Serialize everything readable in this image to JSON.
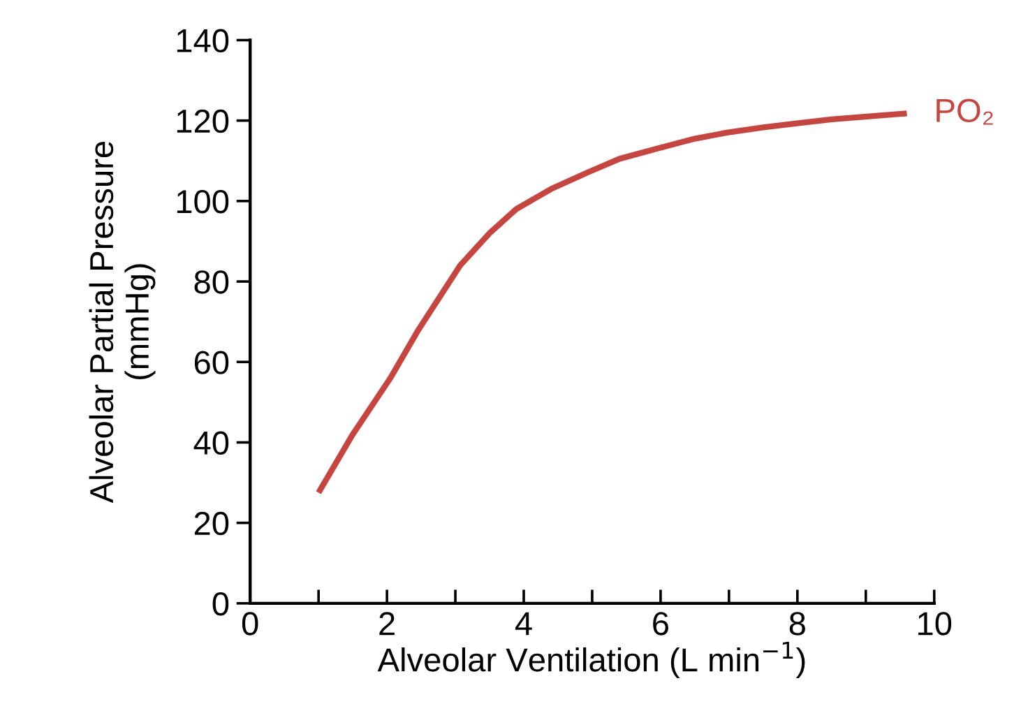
{
  "chart_data": {
    "type": "line",
    "xlabel": "Alveolar Ventilation (L min$^{−1}$)",
    "ylabel": "Alveolar Partial Pressure\n(mmHg)",
    "series": [
      {
        "name": "PO₂",
        "color": "#c8453f",
        "x": [
          1.0,
          1.5,
          2.05,
          2.46,
          3.07,
          3.5,
          3.89,
          4.4,
          4.92,
          5.4,
          5.94,
          6.5,
          6.97,
          7.5,
          7.99,
          8.5,
          9.02,
          9.6
        ],
        "values": [
          27.5,
          42,
          56,
          68,
          84,
          92,
          98,
          103,
          107,
          110.5,
          113,
          115.5,
          117,
          118.3,
          119.3,
          120.3,
          121,
          121.8
        ]
      }
    ],
    "xlim": [
      0,
      10
    ],
    "ylim": [
      0,
      140
    ],
    "xticks": [
      0,
      {
        "value": 1,
        "label": null
      },
      2,
      {
        "value": 3,
        "label": null
      },
      4,
      {
        "value": 5,
        "label": null
      },
      6,
      {
        "value": 7,
        "label": null
      },
      8,
      {
        "value": 9,
        "label": null
      },
      10
    ],
    "yticks": [
      0,
      20,
      40,
      60,
      80,
      100,
      120,
      140
    ],
    "grid": false,
    "legend": false,
    "marker": "none",
    "line_style": "solid"
  }
}
